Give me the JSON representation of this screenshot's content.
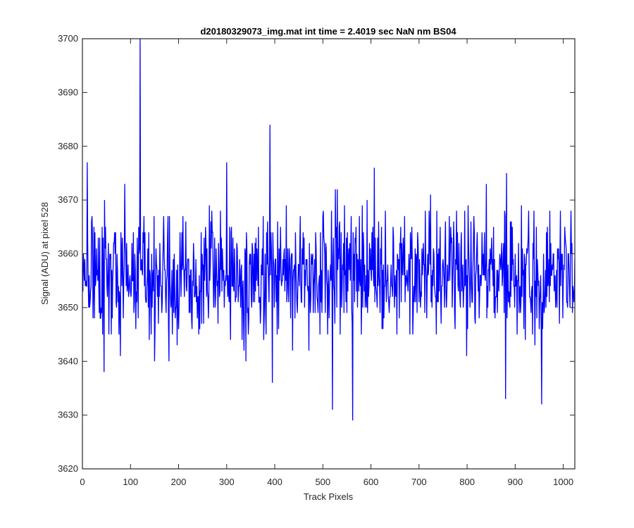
{
  "figure": {
    "background": "#ffffff"
  },
  "chart_data": {
    "type": "line",
    "title": "d20180329073_img.mat int time = 2.4019 sec  NaN nm BS04",
    "xlabel": "Track Pixels",
    "ylabel": "Signal (ADU) at pixel 528",
    "xlim": [
      0,
      1024
    ],
    "ylim": [
      3620,
      3700
    ],
    "xticks": [
      0,
      100,
      200,
      300,
      400,
      500,
      600,
      700,
      800,
      900,
      1000
    ],
    "yticks": [
      3620,
      3630,
      3640,
      3650,
      3660,
      3670,
      3680,
      3690,
      3700
    ],
    "xtick_labels": [
      "0",
      "100",
      "200",
      "300",
      "400",
      "500",
      "600",
      "700",
      "800",
      "900",
      "1000"
    ],
    "ytick_labels": [
      "3620",
      "3630",
      "3640",
      "3650",
      "3660",
      "3670",
      "3680",
      "3690",
      "3700"
    ],
    "grid": false,
    "series": [
      {
        "color": "#0000ff",
        "n_points": 1024,
        "x_start": 1,
        "x_step": 1,
        "approx_mean": 3656,
        "approx_min": 3629,
        "approx_max": 3700,
        "key_points": [
          {
            "x": 10,
            "y": 3677
          },
          {
            "x": 45,
            "y": 3638
          },
          {
            "x": 88,
            "y": 3673
          },
          {
            "x": 120,
            "y": 3700
          },
          {
            "x": 150,
            "y": 3640
          },
          {
            "x": 180,
            "y": 3640
          },
          {
            "x": 300,
            "y": 3677
          },
          {
            "x": 340,
            "y": 3640
          },
          {
            "x": 390,
            "y": 3684
          },
          {
            "x": 395,
            "y": 3636
          },
          {
            "x": 520,
            "y": 3631
          },
          {
            "x": 530,
            "y": 3672
          },
          {
            "x": 562,
            "y": 3629
          },
          {
            "x": 607,
            "y": 3676
          },
          {
            "x": 840,
            "y": 3673
          },
          {
            "x": 880,
            "y": 3633
          },
          {
            "x": 882,
            "y": 3675
          },
          {
            "x": 955,
            "y": 3632
          }
        ]
      }
    ]
  }
}
